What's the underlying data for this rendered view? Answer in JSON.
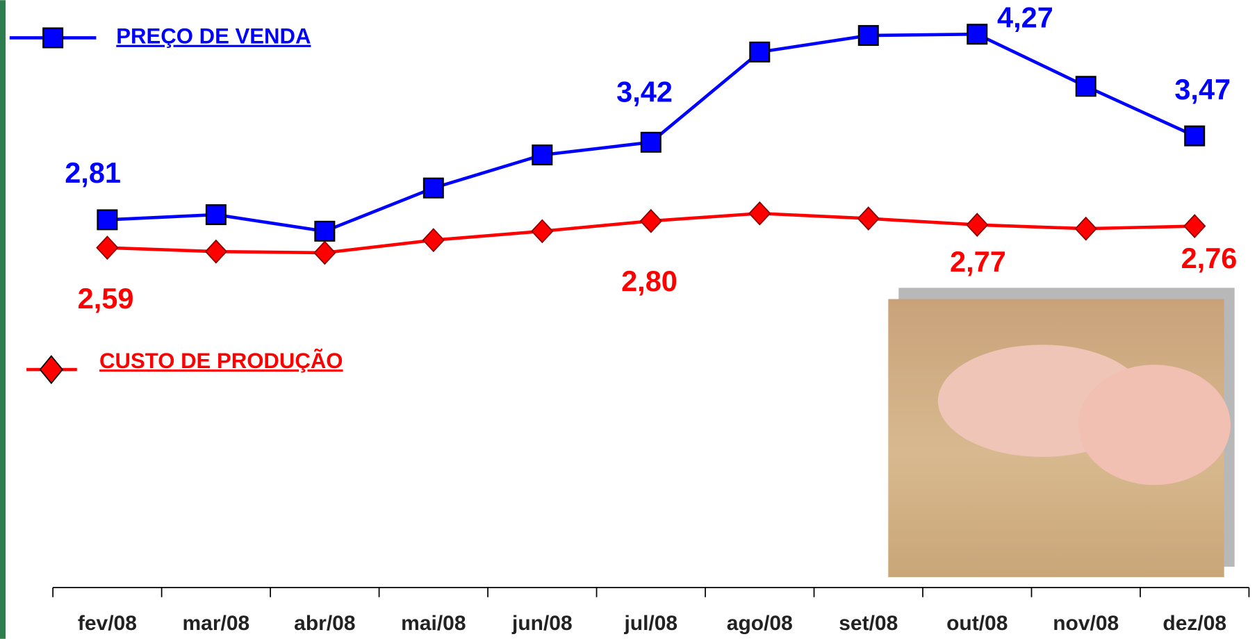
{
  "chart_data": {
    "type": "line",
    "categories": [
      "fev/08",
      "mar/08",
      "abr/08",
      "mai/08",
      "jun/08",
      "jul/08",
      "ago/08",
      "set/08",
      "out/08",
      "nov/08",
      "dez/08"
    ],
    "series": [
      {
        "name": "PREÇO DE VENDA",
        "color": "#0000ff",
        "marker": "square",
        "values": [
          2.81,
          2.85,
          2.72,
          3.06,
          3.32,
          3.42,
          4.13,
          4.26,
          4.27,
          3.86,
          3.47
        ],
        "value_labels": [
          "2,81",
          null,
          null,
          null,
          null,
          "3,42",
          null,
          null,
          "4,27",
          null,
          "3,47"
        ]
      },
      {
        "name": "CUSTO DE PRODUÇÃO",
        "color": "#ff0000",
        "marker": "diamond",
        "values": [
          2.59,
          2.56,
          2.55,
          2.65,
          2.72,
          2.8,
          2.86,
          2.82,
          2.77,
          2.74,
          2.76
        ],
        "value_labels": [
          "2,59",
          null,
          null,
          null,
          null,
          "2,80",
          null,
          null,
          "2,77",
          null,
          "2,76"
        ]
      }
    ],
    "ylim": [
      2.0,
      4.5
    ],
    "grid": false
  }
}
